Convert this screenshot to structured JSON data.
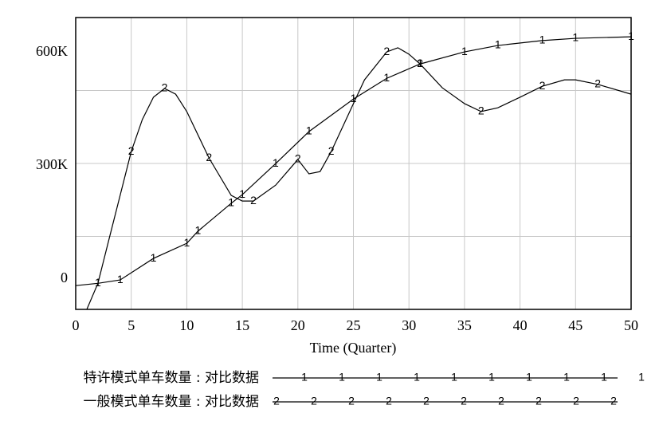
{
  "chart_data": {
    "type": "line",
    "xlabel": "Time (Quarter)",
    "xlim": [
      0,
      50
    ],
    "xticks": [
      0,
      5,
      10,
      15,
      20,
      25,
      30,
      35,
      40,
      45,
      50
    ],
    "ylim": [
      -80000,
      693000
    ],
    "yticks": [
      {
        "value": 0,
        "label": "0"
      },
      {
        "value": 300000,
        "label": "300K"
      },
      {
        "value": 600000,
        "label": "600K"
      }
    ],
    "grid": true,
    "series": [
      {
        "name": "特许模式单车数量 : 对比数据",
        "marker": "1",
        "color": "#000000",
        "x": [
          0,
          2,
          4,
          7,
          10,
          11,
          14,
          15,
          18,
          21,
          25,
          28,
          31,
          35,
          38,
          42,
          45,
          50
        ],
        "values": [
          -17000,
          -11000,
          -2000,
          55000,
          95000,
          127000,
          201000,
          224000,
          306000,
          391000,
          477000,
          532000,
          570000,
          602000,
          619000,
          632000,
          638000,
          642000
        ]
      },
      {
        "name": "一般模式单车数量 : 对比数据",
        "marker": "2",
        "color": "#000000",
        "x": [
          1,
          2,
          3,
          5,
          6,
          7,
          8,
          9,
          10,
          12,
          14,
          15,
          16,
          18,
          19.5,
          20,
          21,
          22,
          23,
          25,
          26,
          28,
          29,
          30,
          31,
          33,
          35,
          36.5,
          38,
          40,
          42,
          44,
          45,
          47,
          50
        ],
        "values": [
          -80000,
          -11000,
          106000,
          338000,
          423000,
          482000,
          505000,
          490000,
          444000,
          321000,
          222000,
          207000,
          207000,
          249000,
          300000,
          317000,
          279000,
          285000,
          338000,
          465000,
          528000,
          602000,
          613000,
          596000,
          570000,
          507000,
          465000,
          444000,
          454000,
          482000,
          511000,
          528000,
          528000,
          516000,
          490000
        ]
      }
    ]
  }
}
